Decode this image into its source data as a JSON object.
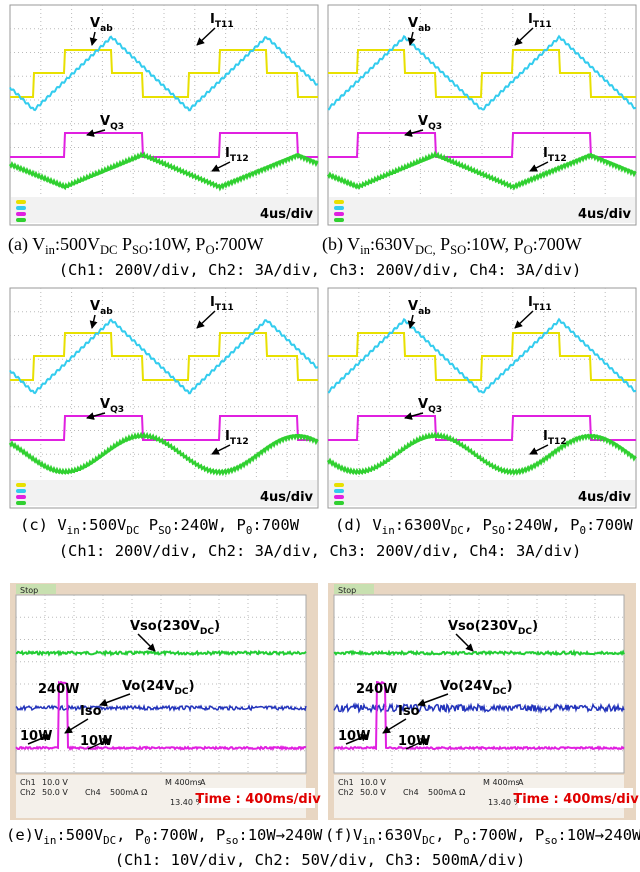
{
  "scope_panels": [
    {
      "labels": [
        [
          {
            "text": "V"
          },
          {
            "text": "ab",
            "sub": true
          }
        ],
        [
          {
            "text": "I"
          },
          {
            "text": "T11",
            "sub": true
          }
        ],
        [
          {
            "text": "V"
          },
          {
            "text": "Q3",
            "sub": true
          }
        ],
        [
          {
            "text": "I"
          },
          {
            "text": "T12",
            "sub": true
          }
        ]
      ],
      "scale": "4us/div"
    },
    {
      "labels": [
        [
          {
            "text": "V"
          },
          {
            "text": "ab",
            "sub": true
          }
        ],
        [
          {
            "text": "I"
          },
          {
            "text": "T11",
            "sub": true
          }
        ],
        [
          {
            "text": "V"
          },
          {
            "text": "Q3",
            "sub": true
          }
        ],
        [
          {
            "text": "I"
          },
          {
            "text": "T12",
            "sub": true
          }
        ]
      ],
      "scale": "4us/div"
    },
    {
      "labels": [
        [
          {
            "text": "V"
          },
          {
            "text": "ab",
            "sub": true
          }
        ],
        [
          {
            "text": "I"
          },
          {
            "text": "T11",
            "sub": true
          }
        ],
        [
          {
            "text": "V"
          },
          {
            "text": "Q3",
            "sub": true
          }
        ],
        [
          {
            "text": "I"
          },
          {
            "text": "T12",
            "sub": true
          }
        ]
      ],
      "scale": "4us/div"
    },
    {
      "labels": [
        [
          {
            "text": "V"
          },
          {
            "text": "ab",
            "sub": true
          }
        ],
        [
          {
            "text": "I"
          },
          {
            "text": "T11",
            "sub": true
          }
        ],
        [
          {
            "text": "V"
          },
          {
            "text": "Q3",
            "sub": true
          }
        ],
        [
          {
            "text": "I"
          },
          {
            "text": "T12",
            "sub": true
          }
        ]
      ],
      "scale": "4us/div"
    }
  ],
  "lower_panels": [
    {
      "status": "Stop",
      "labels": [
        [
          {
            "text": "Vso(230V"
          },
          {
            "text": "DC",
            "sub": true
          },
          {
            "text": ")"
          }
        ],
        [
          {
            "text": "Vo(24V"
          },
          {
            "text": "DC",
            "sub": true
          },
          {
            "text": ")"
          }
        ],
        [
          {
            "text": "240W"
          }
        ],
        [
          {
            "text": "Iso"
          }
        ],
        [
          {
            "text": "10W"
          }
        ],
        [
          {
            "text": "10W"
          }
        ]
      ],
      "readout": [
        "Ch1",
        "10.0 V",
        "M 400ms",
        "A",
        "Ch2",
        "50.0 V",
        "Ch4",
        "500mA Ω",
        "13.40 %"
      ],
      "timebase": "Time : 400ms/div"
    },
    {
      "status": "Stop",
      "labels": [
        [
          {
            "text": "Vso(230V"
          },
          {
            "text": "DC",
            "sub": true
          },
          {
            "text": ")"
          }
        ],
        [
          {
            "text": "Vo(24V"
          },
          {
            "text": "DC",
            "sub": true
          },
          {
            "text": ")"
          }
        ],
        [
          {
            "text": "240W"
          }
        ],
        [
          {
            "text": "Iso"
          }
        ],
        [
          {
            "text": "10W"
          }
        ],
        [
          {
            "text": "10W"
          }
        ]
      ],
      "readout": [
        "Ch1",
        "10.0 V",
        "M 400ms",
        "A",
        "Ch2",
        "50.0 V",
        "Ch4",
        "500mA Ω",
        "13.40 %"
      ],
      "timebase": "Time : 400ms/div"
    }
  ],
  "captions": [
    [
      {
        "text": "(a) V"
      },
      {
        "text": "in",
        "sub": true
      },
      {
        "text": ":500V"
      },
      {
        "text": "DC",
        "sub": true
      },
      {
        "text": " P"
      },
      {
        "text": "SO",
        "sub": true
      },
      {
        "text": ":10W, P"
      },
      {
        "text": "O",
        "sub": true
      },
      {
        "text": ":700W"
      }
    ],
    [
      {
        "text": "(b) V"
      },
      {
        "text": "in",
        "sub": true
      },
      {
        "text": ":630V"
      },
      {
        "text": "DC,",
        "sub": true
      },
      {
        "text": " P"
      },
      {
        "text": "SO",
        "sub": true
      },
      {
        "text": ":10W, P"
      },
      {
        "text": "O",
        "sub": true
      },
      {
        "text": ":700W"
      }
    ],
    [
      {
        "text": "(Ch1: 200V/div, Ch2: 3A/div, Ch3: 200V/div, Ch4: 3A/div)"
      }
    ],
    [
      {
        "text": "(c) V"
      },
      {
        "text": "in",
        "sub": true
      },
      {
        "text": ":500V"
      },
      {
        "text": "DC",
        "sub": true
      },
      {
        "text": " P"
      },
      {
        "text": "SO",
        "sub": true
      },
      {
        "text": ":240W, P"
      },
      {
        "text": "0",
        "sub": true
      },
      {
        "text": ":700W"
      }
    ],
    [
      {
        "text": "(d) V"
      },
      {
        "text": "in",
        "sub": true
      },
      {
        "text": ":6300V"
      },
      {
        "text": "DC",
        "sub": true
      },
      {
        "text": ", P"
      },
      {
        "text": "SO",
        "sub": true
      },
      {
        "text": ":240W, P"
      },
      {
        "text": "0",
        "sub": true
      },
      {
        "text": ":700W"
      }
    ],
    [
      {
        "text": "(Ch1: 200V/div, Ch2: 3A/div, Ch3: 200V/div, Ch4: 3A/div)"
      }
    ],
    [
      {
        "text": "(e)V"
      },
      {
        "text": "in",
        "sub": true
      },
      {
        "text": ":500V"
      },
      {
        "text": "DC",
        "sub": true
      },
      {
        "text": ", P"
      },
      {
        "text": "0",
        "sub": true
      },
      {
        "text": ":700W, P"
      },
      {
        "text": "so",
        "sub": true
      },
      {
        "text": ":10W→240W"
      }
    ],
    [
      {
        "text": "(f)V"
      },
      {
        "text": "in",
        "sub": true
      },
      {
        "text": ":630V"
      },
      {
        "text": "DC",
        "sub": true
      },
      {
        "text": ", P"
      },
      {
        "text": "o",
        "sub": true
      },
      {
        "text": ":700W,  P"
      },
      {
        "text": "so",
        "sub": true
      },
      {
        "text": ":10W→240W"
      }
    ],
    [
      {
        "text": "(Ch1: 10V/div, Ch2: 50V/div, Ch3: 500mA/div)"
      }
    ]
  ]
}
